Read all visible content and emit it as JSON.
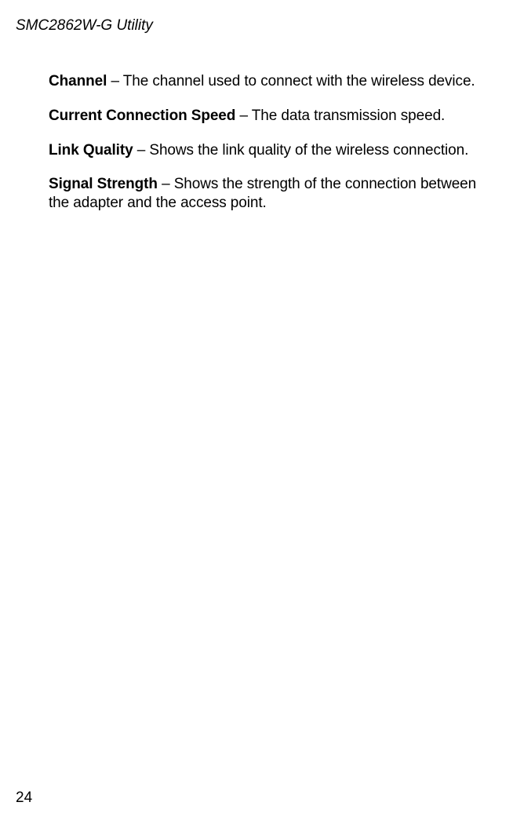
{
  "header": {
    "title": "SMC2862W-G Utility"
  },
  "definitions": [
    {
      "term": "Channel",
      "description": " – The channel used to connect with the wireless device."
    },
    {
      "term": "Current Connection Speed",
      "description": " – The data transmission speed."
    },
    {
      "term": "Link Quality",
      "description": " – Shows the link quality of the wireless connection."
    },
    {
      "term": "Signal Strength",
      "description": " – Shows the strength of the connection between the adapter and the access point."
    }
  ],
  "footer": {
    "page_number": "24"
  },
  "colors": {
    "text": "#000000",
    "background": "#ffffff"
  },
  "typography": {
    "body_fontsize_pt": 14,
    "header_style": "italic",
    "term_weight": "bold"
  }
}
